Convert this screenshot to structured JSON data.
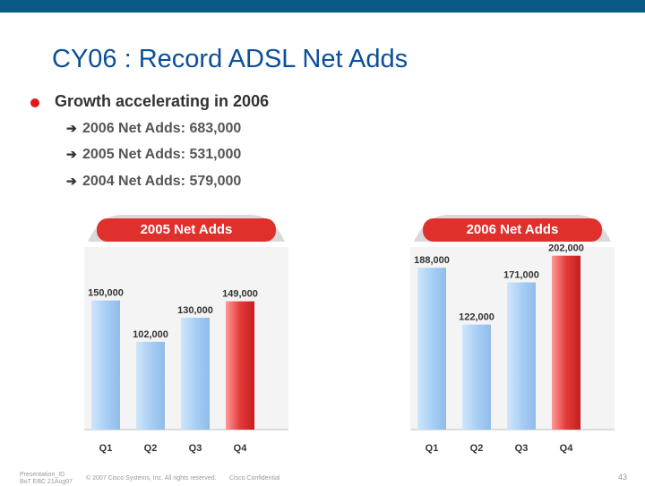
{
  "slide": {
    "title": "CY06 : Record ADSL Net Adds",
    "bullet": "Growth accelerating in 2006",
    "subbullets": [
      "2006 Net Adds: 683,000",
      "2005 Net Adds: 531,000",
      "2004 Net Adds: 579,000"
    ]
  },
  "footer": {
    "left_line1": "Presentation_ID",
    "left_line2": "BoT EBC 21Aug07",
    "copyright": "© 2007 Cisco Systems, Inc. All rights reserved.",
    "confidential": "Cisco Confidential",
    "page": "43"
  },
  "colors": {
    "bar_blue": "#a9cff5",
    "bar_red": "#e53a3a",
    "title_red": "#e0302c",
    "title_blue": "#0a4f9a"
  },
  "chart_data": [
    {
      "type": "bar",
      "title": "2005 Net Adds",
      "categories": [
        "Q1",
        "Q2",
        "Q3",
        "Q4"
      ],
      "values": [
        150000,
        102000,
        130000,
        149000
      ],
      "labels": [
        "150,000",
        "102,000",
        "130,000",
        "149,000"
      ],
      "highlight_index": 3,
      "ylim": [
        0,
        210000
      ]
    },
    {
      "type": "bar",
      "title": "2006 Net Adds",
      "categories": [
        "Q1",
        "Q2",
        "Q3",
        "Q4"
      ],
      "values": [
        188000,
        122000,
        171000,
        202000
      ],
      "labels": [
        "188,000",
        "122,000",
        "171,000",
        "202,000"
      ],
      "highlight_index": 3,
      "ylim": [
        0,
        210000
      ]
    }
  ]
}
